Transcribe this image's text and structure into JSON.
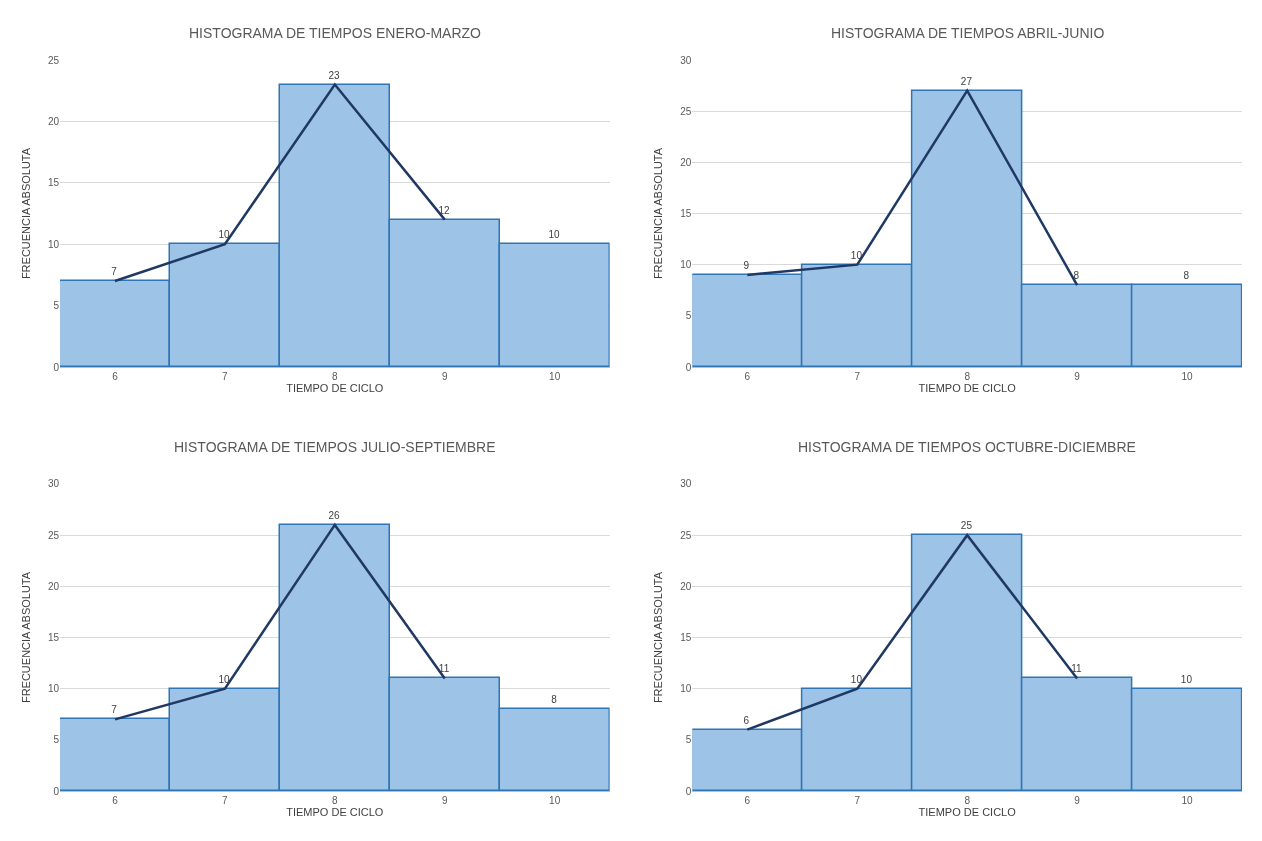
{
  "chart_data": [
    {
      "type": "bar",
      "title": "HISTOGRAMA DE TIEMPOS ENERO-MARZO",
      "xlabel": "TIEMPO DE CICLO",
      "ylabel": "FRECUENCIA ABSOLUTA",
      "categories": [
        "6",
        "7",
        "8",
        "9",
        "10"
      ],
      "ylim": [
        0,
        25
      ],
      "yticks": [
        0,
        5,
        10,
        15,
        20,
        25
      ],
      "grid": "y",
      "series": [
        {
          "color": "#9dc3e6",
          "values": [
            7,
            10,
            23,
            12,
            10
          ],
          "value_labels": [
            "7",
            "10",
            "23",
            "12",
            "10"
          ]
        },
        {
          "type": "line",
          "color": "#203864",
          "values": [
            7,
            10,
            23,
            12,
            null
          ]
        }
      ]
    },
    {
      "type": "bar",
      "title": "HISTOGRAMA DE TIEMPOS ABRIL-JUNIO",
      "xlabel": "TIEMPO DE CICLO",
      "ylabel": "FRECUENCIA ABSOLUTA",
      "categories": [
        "6",
        "7",
        "8",
        "9",
        "10"
      ],
      "ylim": [
        0,
        30
      ],
      "yticks": [
        0,
        5,
        10,
        15,
        20,
        25,
        30
      ],
      "grid": "y",
      "series": [
        {
          "color": "#9dc3e6",
          "values": [
            9,
            10,
            27,
            8,
            8
          ],
          "value_labels": [
            "9",
            "10",
            "27",
            "8",
            "8"
          ]
        },
        {
          "type": "line",
          "color": "#203864",
          "values": [
            9,
            10,
            27,
            8,
            null
          ]
        }
      ]
    },
    {
      "type": "bar",
      "title": "HISTOGRAMA DE TIEMPOS JULIO-SEPTIEMBRE",
      "xlabel": "TIEMPO DE CICLO",
      "ylabel": "FRECUENCIA ABSOLUTA",
      "categories": [
        "6",
        "7",
        "8",
        "9",
        "10"
      ],
      "ylim": [
        0,
        30
      ],
      "yticks": [
        0,
        5,
        10,
        15,
        20,
        25,
        30
      ],
      "grid": "y",
      "series": [
        {
          "color": "#9dc3e6",
          "values": [
            7,
            10,
            26,
            11,
            8
          ],
          "value_labels": [
            "7",
            "10",
            "26",
            "11",
            "8"
          ]
        },
        {
          "type": "line",
          "color": "#203864",
          "values": [
            7,
            10,
            26,
            11,
            null
          ]
        }
      ]
    },
    {
      "type": "bar",
      "title": "HISTOGRAMA DE TIEMPOS OCTUBRE-DICIEMBRE",
      "xlabel": "TIEMPO DE CICLO",
      "ylabel": "FRECUENCIA ABSOLUTA",
      "categories": [
        "6",
        "7",
        "8",
        "9",
        "10"
      ],
      "ylim": [
        0,
        30
      ],
      "yticks": [
        0,
        5,
        10,
        15,
        20,
        25,
        30
      ],
      "grid": "y",
      "series": [
        {
          "color": "#9dc3e6",
          "values": [
            6,
            10,
            25,
            11,
            10
          ],
          "value_labels": [
            "6",
            "10",
            "25",
            "11",
            "10"
          ]
        },
        {
          "type": "line",
          "color": "#203864",
          "values": [
            6,
            10,
            25,
            11,
            null
          ]
        }
      ]
    }
  ]
}
